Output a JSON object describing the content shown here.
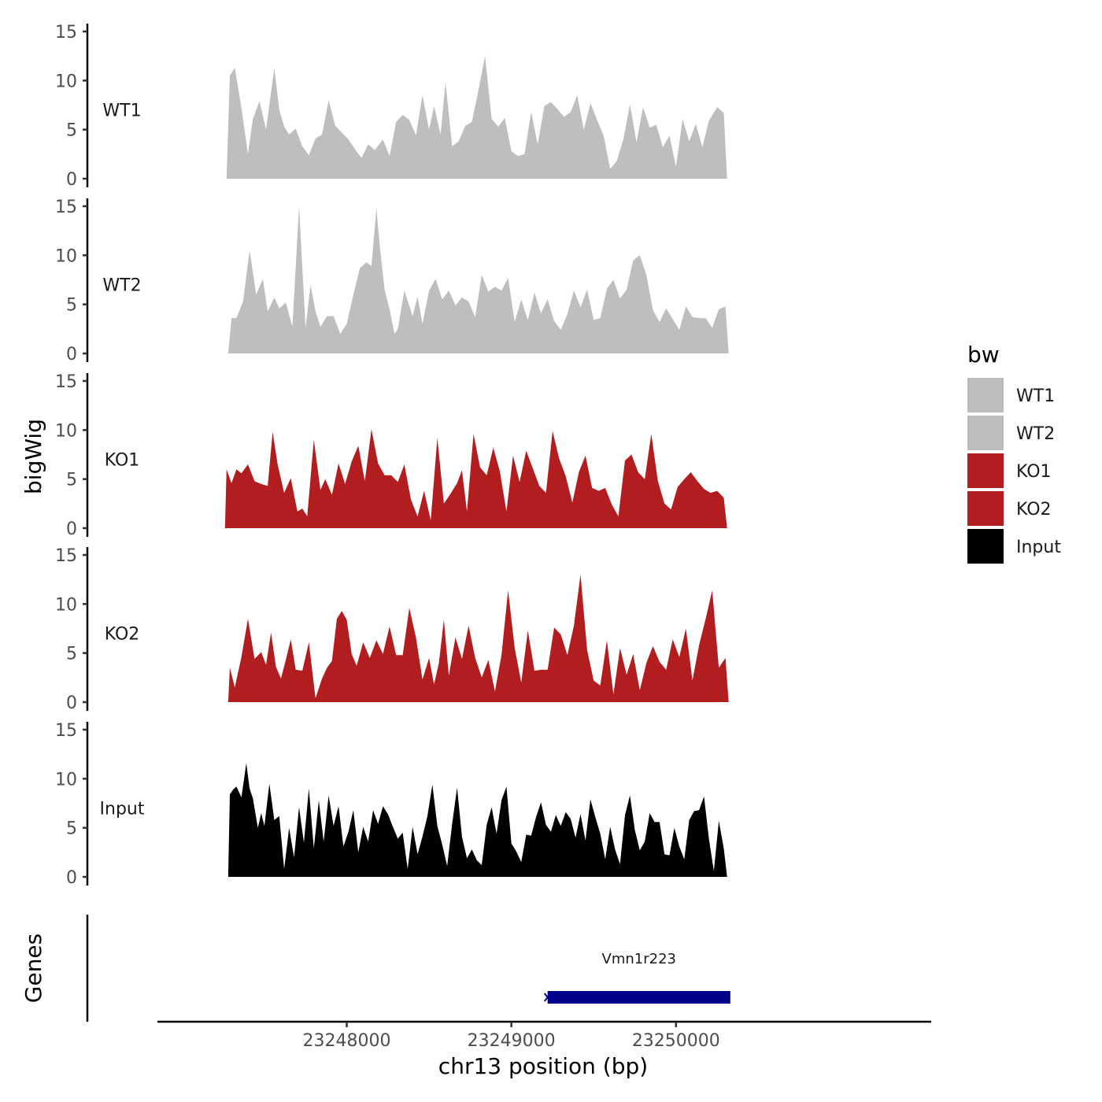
{
  "chart_data": {
    "type": "area",
    "ylabel": "bigWig",
    "xlabel": "chr13 position (bp)",
    "genes_label": "Genes",
    "y_ticks": [
      "0",
      "5",
      "10",
      "15"
    ],
    "ylim": [
      0,
      15
    ],
    "xlim": [
      23246850,
      23251550
    ],
    "x_ticks": [
      {
        "value": 23248000,
        "label": "23248000"
      },
      {
        "value": 23249000,
        "label": "23249000"
      },
      {
        "value": 23250000,
        "label": "23250000"
      }
    ],
    "legend": {
      "title": "bw",
      "entries": [
        {
          "label": "WT1",
          "color": "#bebebe"
        },
        {
          "label": "WT2",
          "color": "#bebebe"
        },
        {
          "label": "KO1",
          "color": "#b21e1f"
        },
        {
          "label": "KO2",
          "color": "#b21e1f"
        },
        {
          "label": "Input",
          "color": "#000000"
        }
      ]
    },
    "series": [
      {
        "name": "WT1",
        "color": "#bebebe",
        "x": [
          23247270,
          23247290,
          23247320,
          23247360,
          23247400,
          23247430,
          23247470,
          23247510,
          23247560,
          23247590,
          23247620,
          23247650,
          23247690,
          23247730,
          23247770,
          23247810,
          23247850,
          23247890,
          23247930,
          23247970,
          23248010,
          23248050,
          23248090,
          23248130,
          23248170,
          23248220,
          23248260,
          23248300,
          23248340,
          23248380,
          23248420,
          23248460,
          23248500,
          23248530,
          23248570,
          23248600,
          23248640,
          23248680,
          23248720,
          23248760,
          23248800,
          23248840,
          23248880,
          23248920,
          23248960,
          23249000,
          23249040,
          23249080,
          23249120,
          23249160,
          23249200,
          23249240,
          23249280,
          23249320,
          23249360,
          23249400,
          23249440,
          23249480,
          23249520,
          23249560,
          23249600,
          23249640,
          23249680,
          23249720,
          23249760,
          23249800,
          23249840,
          23249880,
          23249920,
          23249960,
          23250000,
          23250040,
          23250080,
          23250120,
          23250160,
          23250200,
          23250250,
          23250290,
          23250310
        ],
        "values": [
          0,
          10.5,
          11.3,
          7.2,
          2.5,
          6.1,
          7.9,
          5,
          11.3,
          7,
          5.3,
          4.5,
          5.1,
          3.3,
          2.4,
          4.1,
          4.5,
          8,
          5.4,
          4.7,
          4,
          3,
          2.1,
          3.5,
          2.9,
          4,
          2.3,
          5.8,
          6.5,
          6,
          4.4,
          8.5,
          5,
          7.4,
          4.5,
          9.8,
          3.3,
          3.8,
          5.4,
          5.8,
          9,
          12.5,
          6.1,
          5.3,
          6.2,
          2.8,
          2.3,
          2.5,
          6.8,
          3.5,
          7.4,
          7.8,
          7.1,
          6.3,
          6.8,
          8.5,
          5,
          7.7,
          6,
          4.4,
          1,
          1.8,
          4,
          7.6,
          3.7,
          7.3,
          5.2,
          5.5,
          3.2,
          4.4,
          1.2,
          6.1,
          3.8,
          5.6,
          3.2,
          5.9,
          7.3,
          6.7,
          0
        ]
      },
      {
        "name": "WT2",
        "color": "#bebebe",
        "x": [
          23247280,
          23247300,
          23247330,
          23247370,
          23247410,
          23247450,
          23247490,
          23247520,
          23247560,
          23247590,
          23247630,
          23247670,
          23247710,
          23247750,
          23247780,
          23247810,
          23247840,
          23247880,
          23247920,
          23247960,
          23248000,
          23248040,
          23248080,
          23248120,
          23248150,
          23248180,
          23248200,
          23248230,
          23248260,
          23248290,
          23248310,
          23248350,
          23248400,
          23248430,
          23248460,
          23248500,
          23248540,
          23248580,
          23248620,
          23248660,
          23248700,
          23248740,
          23248780,
          23248820,
          23248860,
          23248900,
          23248940,
          23248980,
          23249020,
          23249060,
          23249100,
          23249140,
          23249180,
          23249220,
          23249260,
          23249300,
          23249340,
          23249380,
          23249420,
          23249460,
          23249500,
          23249540,
          23249580,
          23249620,
          23249660,
          23249700,
          23249740,
          23249780,
          23249820,
          23249860,
          23249900,
          23249940,
          23249980,
          23250020,
          23250060,
          23250100,
          23250140,
          23250180,
          23250220,
          23250260,
          23250300,
          23250320
        ],
        "values": [
          0,
          3.6,
          3.6,
          5.3,
          10.5,
          6,
          7.6,
          4.3,
          5.7,
          4.6,
          5.2,
          2.7,
          15,
          2.6,
          7,
          4.3,
          2.7,
          3.8,
          3.8,
          2,
          3,
          6,
          8.7,
          9.3,
          8.9,
          14.8,
          11,
          6.5,
          4.5,
          2,
          2.5,
          6.4,
          3.8,
          5.8,
          3,
          6.4,
          7.6,
          5.5,
          6.4,
          4.9,
          5.7,
          5.3,
          3.7,
          8,
          6.3,
          6.8,
          6.4,
          7.7,
          3.2,
          5.5,
          3.4,
          6.2,
          4.1,
          5.5,
          3.3,
          2.4,
          4,
          6.4,
          4.7,
          6.5,
          3.4,
          3.6,
          6.6,
          7.5,
          5.6,
          6.5,
          9.5,
          10,
          8,
          4.4,
          3.2,
          4.6,
          3.5,
          2.4,
          4.8,
          3.7,
          3.6,
          3.6,
          2.6,
          4.5,
          4.8,
          0
        ]
      },
      {
        "name": "KO1",
        "color": "#b21e1f",
        "x": [
          23247260,
          23247270,
          23247300,
          23247330,
          23247360,
          23247400,
          23247440,
          23247480,
          23247520,
          23247550,
          23247580,
          23247620,
          23247660,
          23247700,
          23247730,
          23247760,
          23247800,
          23247840,
          23247870,
          23247910,
          23247950,
          23247990,
          23248030,
          23248070,
          23248110,
          23248150,
          23248190,
          23248230,
          23248270,
          23248310,
          23248350,
          23248390,
          23248430,
          23248470,
          23248510,
          23248550,
          23248590,
          23248630,
          23248670,
          23248700,
          23248730,
          23248770,
          23248810,
          23248850,
          23248890,
          23248930,
          23248970,
          23249010,
          23249050,
          23249090,
          23249130,
          23249170,
          23249210,
          23249250,
          23249290,
          23249330,
          23249370,
          23249410,
          23249450,
          23249490,
          23249530,
          23249570,
          23249610,
          23249650,
          23249690,
          23249730,
          23249770,
          23249810,
          23249850,
          23249890,
          23249930,
          23249970,
          23250010,
          23250050,
          23250090,
          23250130,
          23250170,
          23250210,
          23250250,
          23250290,
          23250310
        ],
        "values": [
          0,
          6,
          4.6,
          6,
          5.6,
          6.5,
          4.8,
          4.5,
          4.3,
          9.8,
          6.5,
          3.6,
          5.1,
          1.7,
          2,
          1.2,
          9,
          3.9,
          5,
          3.4,
          6.6,
          4.5,
          6.8,
          8.4,
          4.8,
          10.1,
          6.6,
          5.4,
          5.4,
          4.7,
          6.5,
          2.9,
          1.2,
          3.8,
          0.8,
          9.2,
          2.5,
          3.5,
          4.6,
          5.9,
          1.7,
          9.6,
          6.2,
          5.4,
          8.2,
          5.8,
          1.7,
          7.4,
          4.7,
          7.9,
          6.1,
          4.3,
          3.6,
          9.9,
          7.1,
          5.3,
          2.6,
          5.7,
          7.4,
          4.1,
          3.8,
          4.1,
          2.4,
          1.2,
          6.9,
          7.5,
          5.7,
          5,
          9.6,
          4.8,
          2.5,
          1.9,
          4.2,
          5,
          5.7,
          4.8,
          4,
          3.6,
          3.8,
          3.1,
          0
        ]
      },
      {
        "name": "KO2",
        "color": "#b21e1f",
        "x": [
          23247280,
          23247290,
          23247320,
          23247360,
          23247400,
          23247440,
          23247480,
          23247510,
          23247540,
          23247570,
          23247600,
          23247630,
          23247660,
          23247690,
          23247730,
          23247770,
          23247810,
          23247850,
          23247880,
          23247910,
          23247940,
          23247970,
          23248000,
          23248030,
          23248060,
          23248100,
          23248140,
          23248180,
          23248220,
          23248260,
          23248300,
          23248340,
          23248380,
          23248420,
          23248460,
          23248500,
          23248530,
          23248560,
          23248590,
          23248620,
          23248660,
          23248700,
          23248740,
          23248780,
          23248820,
          23248860,
          23248900,
          23248940,
          23248980,
          23249020,
          23249060,
          23249100,
          23249140,
          23249180,
          23249220,
          23249260,
          23249300,
          23249340,
          23249380,
          23249420,
          23249460,
          23249500,
          23249540,
          23249580,
          23249620,
          23249660,
          23249700,
          23249740,
          23249780,
          23249820,
          23249860,
          23249900,
          23249940,
          23249980,
          23250020,
          23250060,
          23250100,
          23250140,
          23250180,
          23250220,
          23250260,
          23250300,
          23250320
        ],
        "values": [
          0,
          3.5,
          1.5,
          4.6,
          8.5,
          4.4,
          5.1,
          3.8,
          7.1,
          3.6,
          2.4,
          4.3,
          6.4,
          3.3,
          3.2,
          6.1,
          0.4,
          2.4,
          3.5,
          4.2,
          8.5,
          9.3,
          8.4,
          4.9,
          3.7,
          6.1,
          4.5,
          6.3,
          4.9,
          7.7,
          4.8,
          4.8,
          9.6,
          6.6,
          2.3,
          4.5,
          1.8,
          4,
          8.4,
          2.7,
          6.6,
          4.4,
          7.8,
          4.5,
          2.5,
          4.3,
          1.1,
          4.8,
          11.4,
          5.5,
          2,
          7.3,
          3.2,
          3.3,
          3.3,
          7.6,
          6.9,
          4.8,
          7.8,
          13,
          5.3,
          2.2,
          1.7,
          6.3,
          0.8,
          5.5,
          2.8,
          4.9,
          1.2,
          4,
          5.7,
          4.1,
          3.3,
          6.4,
          4.6,
          7.5,
          2.2,
          5.8,
          8.5,
          11.4,
          3.5,
          4.5,
          0
        ]
      },
      {
        "name": "Input",
        "color": "#000000",
        "x": [
          23247280,
          23247290,
          23247310,
          23247330,
          23247360,
          23247390,
          23247410,
          23247430,
          23247460,
          23247480,
          23247500,
          23247530,
          23247560,
          23247590,
          23247620,
          23247650,
          23247680,
          23247710,
          23247740,
          23247770,
          23247800,
          23247830,
          23247860,
          23247890,
          23247920,
          23247950,
          23247980,
          23248010,
          23248040,
          23248070,
          23248100,
          23248130,
          23248160,
          23248190,
          23248220,
          23248250,
          23248280,
          23248310,
          23248340,
          23248370,
          23248400,
          23248430,
          23248460,
          23248490,
          23248520,
          23248550,
          23248580,
          23248610,
          23248640,
          23248670,
          23248700,
          23248730,
          23248760,
          23248790,
          23248820,
          23248850,
          23248880,
          23248910,
          23248940,
          23248970,
          23249000,
          23249030,
          23249060,
          23249090,
          23249120,
          23249150,
          23249180,
          23249210,
          23249240,
          23249270,
          23249300,
          23249330,
          23249360,
          23249390,
          23249420,
          23249450,
          23249480,
          23249510,
          23249540,
          23249570,
          23249600,
          23249630,
          23249660,
          23249690,
          23249720,
          23249750,
          23249780,
          23249810,
          23249840,
          23249870,
          23249900,
          23249930,
          23249960,
          23249990,
          23250020,
          23250050,
          23250080,
          23250110,
          23250140,
          23250170,
          23250200,
          23250230,
          23250260,
          23250290,
          23250310
        ],
        "values": [
          0,
          8.4,
          8.9,
          9.2,
          8.1,
          11.6,
          9,
          8,
          5,
          6.5,
          5.2,
          9.5,
          5.8,
          6.2,
          0.8,
          5,
          2,
          7.1,
          3.5,
          9,
          2.9,
          7.8,
          3.6,
          8.3,
          5.2,
          7.2,
          3.1,
          4.6,
          6.8,
          2.5,
          5.1,
          3.6,
          6.8,
          5.4,
          7.2,
          6.4,
          5.1,
          3.9,
          4.5,
          0.8,
          5.1,
          2.3,
          4.1,
          6.2,
          9.4,
          5.2,
          3.3,
          1.1,
          5.4,
          9.1,
          4.1,
          1.9,
          2.8,
          1.7,
          1.2,
          5.3,
          7.1,
          4.4,
          7.8,
          9.2,
          3.4,
          2.6,
          1.5,
          4.3,
          4.2,
          6.1,
          7.6,
          5.3,
          4.6,
          6.3,
          5.2,
          6.6,
          5.9,
          4,
          6.4,
          3.7,
          7.9,
          6.1,
          4.4,
          1.8,
          5.1,
          2.8,
          1.3,
          6.3,
          8.3,
          4.8,
          2.7,
          3.6,
          6.5,
          5.6,
          5.6,
          2.3,
          2.2,
          5,
          3.1,
          1.8,
          5.8,
          6.7,
          6.8,
          8.2,
          3.9,
          0.6,
          5.7,
          2.9,
          0
        ]
      }
    ],
    "genes": [
      {
        "name": "Vmn1r223",
        "start": 23249220,
        "end": 23250330,
        "color": "#00008b"
      }
    ]
  }
}
